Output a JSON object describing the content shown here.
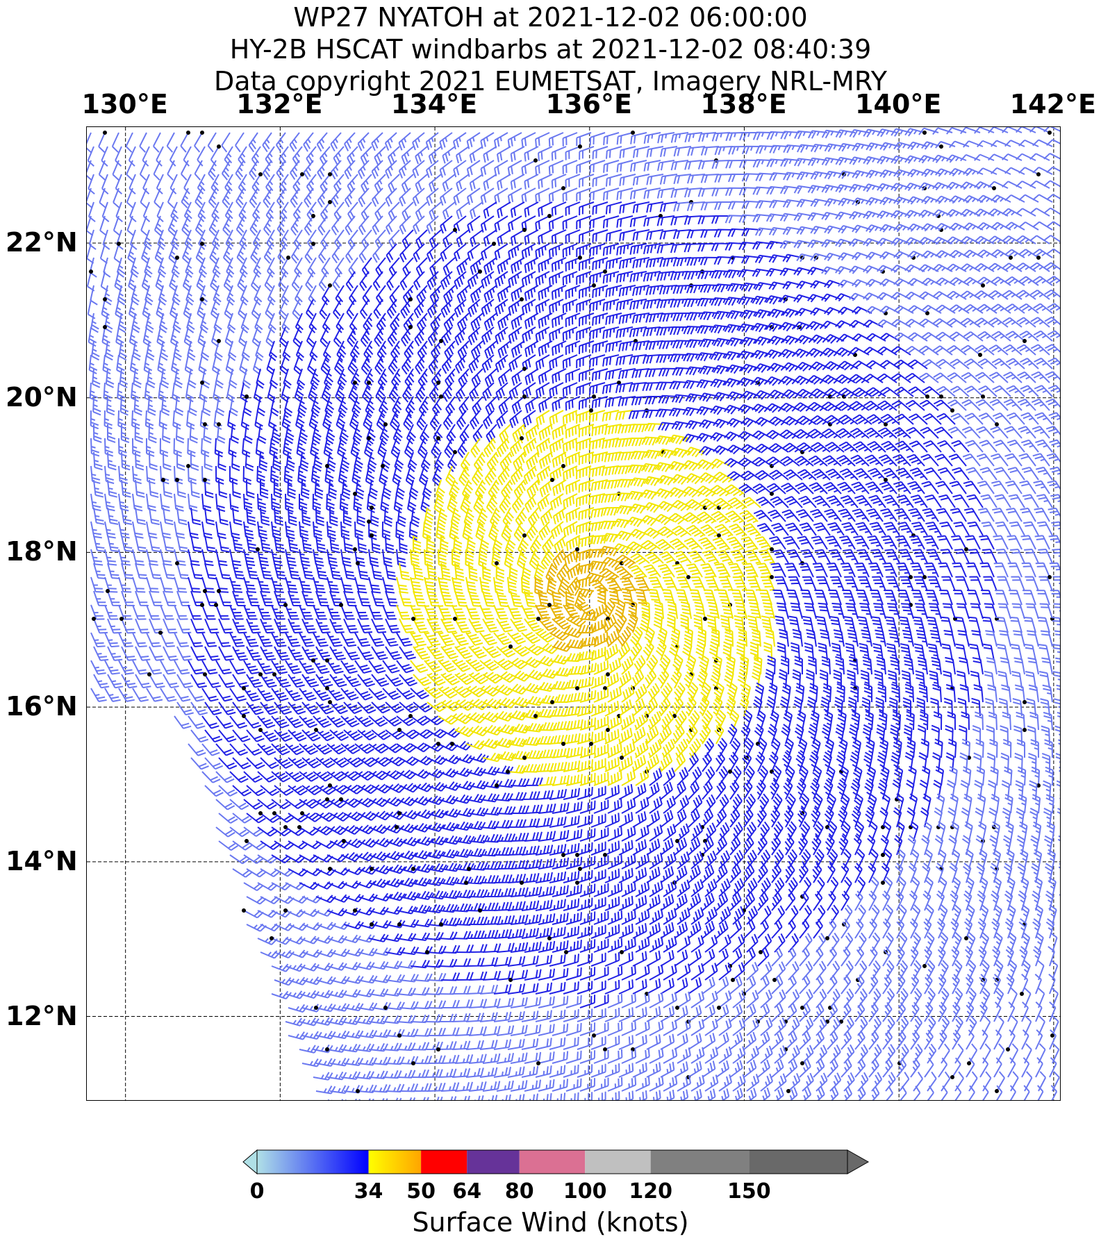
{
  "title": {
    "line1": "WP27 NYATOH at 2021-12-02 06:00:00",
    "line2": "HY-2B HSCAT windbarbs at 2021-12-02 08:40:39",
    "line3": "Data copyright 2021 EUMETSAT, Imagery NRL-MRY"
  },
  "map": {
    "lon_range": [
      129.5,
      142.1
    ],
    "lat_range": [
      10.9,
      23.5
    ],
    "storm_center": {
      "lon": 136.0,
      "lat": 17.4
    },
    "longitude_labels": [
      {
        "lon": 130,
        "text": "130°E"
      },
      {
        "lon": 132,
        "text": "132°E"
      },
      {
        "lon": 134,
        "text": "134°E"
      },
      {
        "lon": 136,
        "text": "136°E"
      },
      {
        "lon": 138,
        "text": "138°E"
      },
      {
        "lon": 140,
        "text": "140°E"
      },
      {
        "lon": 142,
        "text": "142°E"
      }
    ],
    "latitude_labels": [
      {
        "lat": 22,
        "text": "22°N"
      },
      {
        "lat": 20,
        "text": "20°N"
      },
      {
        "lat": 18,
        "text": "18°N"
      },
      {
        "lat": 16,
        "text": "16°N"
      },
      {
        "lat": 14,
        "text": "14°N"
      },
      {
        "lat": 12,
        "text": "12°N"
      }
    ],
    "gridlines": "dashed",
    "windbarb_colors": {
      "light": "#6a78f0",
      "medium": "#2222e6",
      "yellow": "#f2e600",
      "orange": "#e8b400",
      "rain_flag": "#000000"
    }
  },
  "colorbar": {
    "label": "Surface Wind (knots)",
    "ticks": [
      {
        "value": 0,
        "text": "0"
      },
      {
        "value": 34,
        "text": "34"
      },
      {
        "value": 50,
        "text": "50"
      },
      {
        "value": 64,
        "text": "64"
      },
      {
        "value": 80,
        "text": "80"
      },
      {
        "value": 100,
        "text": "100"
      },
      {
        "value": 120,
        "text": "120"
      },
      {
        "value": 150,
        "text": "150"
      }
    ],
    "segments": [
      {
        "from": 0,
        "to": 34,
        "color_start": "#b0e0e6",
        "color_end": "#0000ff"
      },
      {
        "from": 34,
        "to": 50,
        "color_start": "#ffff00",
        "color_end": "#ffa500"
      },
      {
        "from": 50,
        "to": 64,
        "color_start": "#ff0000",
        "color_end": "#ff0000"
      },
      {
        "from": 64,
        "to": 80,
        "color_start": "#663399",
        "color_end": "#663399"
      },
      {
        "from": 80,
        "to": 100,
        "color_start": "#db7093",
        "color_end": "#db7093"
      },
      {
        "from": 100,
        "to": 120,
        "color_start": "#c0c0c0",
        "color_end": "#c0c0c0"
      },
      {
        "from": 120,
        "to": 150,
        "color_start": "#808080",
        "color_end": "#808080"
      },
      {
        "from": 150,
        "to": 180,
        "color_start": "#696969",
        "color_end": "#696969"
      }
    ],
    "extend": "both",
    "under_color": "#b0e0e6",
    "over_color": "#696969"
  }
}
